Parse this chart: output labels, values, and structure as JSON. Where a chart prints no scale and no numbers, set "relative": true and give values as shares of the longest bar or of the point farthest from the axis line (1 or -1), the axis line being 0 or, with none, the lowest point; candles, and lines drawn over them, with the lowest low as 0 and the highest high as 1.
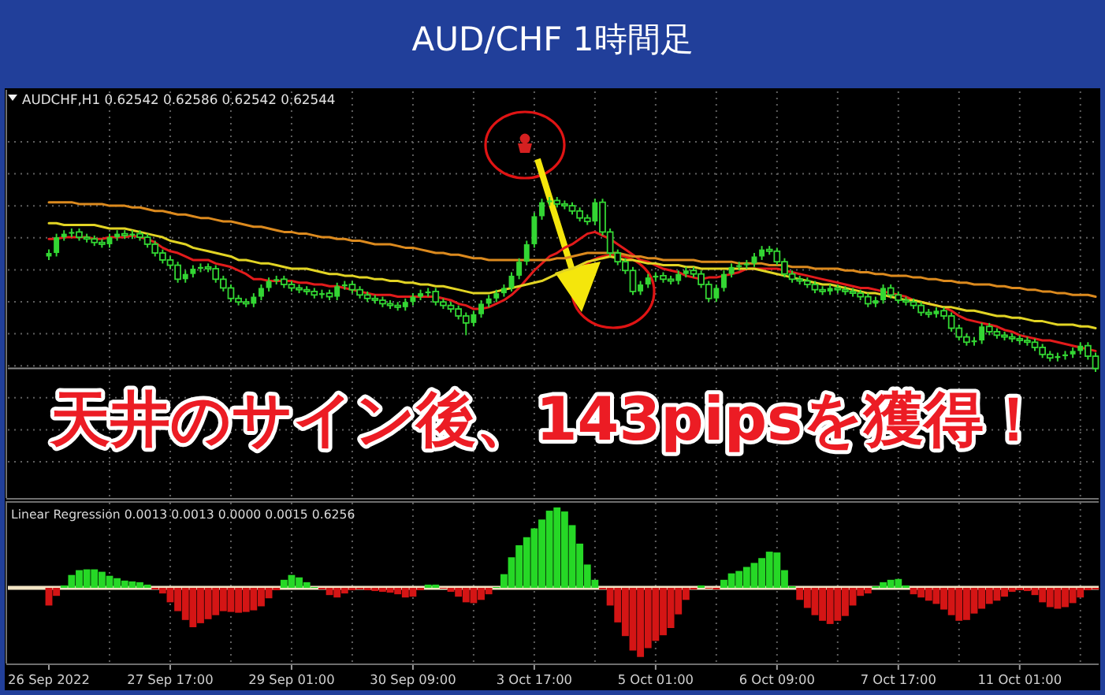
{
  "chart_data": [
    {
      "type": "candlestick",
      "title": "AUD/CHF 1時間足",
      "subtitle": "AUDCHF,H1 0.62542 0.62586 0.62542 0.62544",
      "annotations": [
        "天井のサイン後、143pipsを獲得！"
      ],
      "relative": true,
      "grid": true,
      "tick_labels": false,
      "categories": [
        null,
        null,
        null,
        null,
        null,
        null,
        null,
        null,
        null,
        null,
        null,
        null,
        null,
        null,
        null,
        null,
        null,
        null,
        null,
        null,
        null,
        null,
        null,
        null,
        null,
        null,
        null,
        null,
        null,
        null,
        null,
        null,
        null,
        null,
        null,
        null,
        null,
        null,
        null,
        null,
        null,
        null,
        null,
        null,
        null,
        null,
        null,
        null,
        null,
        null,
        null,
        null,
        null,
        null,
        null,
        null,
        null,
        null,
        null,
        null,
        null,
        null,
        null,
        null,
        null,
        null,
        null,
        null,
        null,
        null,
        null,
        null,
        null,
        null,
        null,
        null,
        null,
        null,
        null,
        null,
        null,
        null,
        null,
        null,
        null,
        null,
        null,
        null,
        null,
        null,
        null,
        null,
        null,
        null,
        null,
        null,
        null,
        null,
        null,
        null,
        null,
        null,
        null,
        null,
        null,
        null,
        null,
        null,
        null,
        null,
        null,
        null,
        null,
        null,
        null,
        null,
        null,
        null,
        null,
        null,
        null,
        null,
        null,
        null,
        null,
        null,
        null,
        null,
        null,
        null,
        null,
        null,
        null,
        null,
        null,
        null,
        null,
        null,
        null
      ],
      "color": "#33d633",
      "ohlc": [
        [
          0.66,
          0.7,
          0.64,
          0.68
        ],
        [
          0.68,
          0.79,
          0.66,
          0.77
        ],
        [
          0.77,
          0.81,
          0.75,
          0.79
        ],
        [
          0.79,
          0.82,
          0.77,
          0.8
        ],
        [
          0.8,
          0.82,
          0.75,
          0.77
        ],
        [
          0.77,
          0.79,
          0.74,
          0.76
        ],
        [
          0.76,
          0.78,
          0.72,
          0.74
        ],
        [
          0.74,
          0.76,
          0.71,
          0.73
        ],
        [
          0.73,
          0.79,
          0.71,
          0.77
        ],
        [
          0.77,
          0.81,
          0.75,
          0.79
        ],
        [
          0.79,
          0.81,
          0.76,
          0.78
        ],
        [
          0.78,
          0.81,
          0.76,
          0.79
        ],
        [
          0.79,
          0.81,
          0.75,
          0.77
        ],
        [
          0.77,
          0.79,
          0.71,
          0.73
        ],
        [
          0.73,
          0.75,
          0.66,
          0.68
        ],
        [
          0.68,
          0.7,
          0.62,
          0.64
        ],
        [
          0.64,
          0.66,
          0.59,
          0.61
        ],
        [
          0.61,
          0.63,
          0.51,
          0.53
        ],
        [
          0.53,
          0.58,
          0.51,
          0.56
        ],
        [
          0.56,
          0.61,
          0.54,
          0.59
        ],
        [
          0.59,
          0.62,
          0.57,
          0.6
        ],
        [
          0.6,
          0.62,
          0.57,
          0.59
        ],
        [
          0.59,
          0.61,
          0.51,
          0.53
        ],
        [
          0.53,
          0.55,
          0.46,
          0.48
        ],
        [
          0.48,
          0.5,
          0.4,
          0.42
        ],
        [
          0.42,
          0.44,
          0.38,
          0.4
        ],
        [
          0.4,
          0.42,
          0.37,
          0.39
        ],
        [
          0.39,
          0.45,
          0.37,
          0.43
        ],
        [
          0.43,
          0.5,
          0.41,
          0.48
        ],
        [
          0.48,
          0.54,
          0.46,
          0.52
        ],
        [
          0.52,
          0.55,
          0.5,
          0.53
        ],
        [
          0.53,
          0.55,
          0.48,
          0.5
        ],
        [
          0.5,
          0.52,
          0.46,
          0.48
        ],
        [
          0.48,
          0.5,
          0.45,
          0.47
        ],
        [
          0.47,
          0.49,
          0.44,
          0.46
        ],
        [
          0.46,
          0.48,
          0.42,
          0.44
        ],
        [
          0.44,
          0.47,
          0.42,
          0.45
        ],
        [
          0.45,
          0.47,
          0.41,
          0.43
        ],
        [
          0.43,
          0.51,
          0.41,
          0.49
        ],
        [
          0.49,
          0.52,
          0.47,
          0.5
        ],
        [
          0.5,
          0.52,
          0.45,
          0.47
        ],
        [
          0.47,
          0.49,
          0.42,
          0.44
        ],
        [
          0.44,
          0.46,
          0.4,
          0.42
        ],
        [
          0.42,
          0.44,
          0.39,
          0.41
        ],
        [
          0.41,
          0.43,
          0.37,
          0.39
        ],
        [
          0.39,
          0.41,
          0.36,
          0.38
        ],
        [
          0.38,
          0.4,
          0.35,
          0.37
        ],
        [
          0.37,
          0.42,
          0.35,
          0.4
        ],
        [
          0.4,
          0.45,
          0.38,
          0.43
        ],
        [
          0.43,
          0.47,
          0.41,
          0.45
        ],
        [
          0.45,
          0.48,
          0.43,
          0.46
        ],
        [
          0.46,
          0.48,
          0.38,
          0.4
        ],
        [
          0.4,
          0.42,
          0.36,
          0.38
        ],
        [
          0.38,
          0.4,
          0.34,
          0.36
        ],
        [
          0.36,
          0.38,
          0.3,
          0.32
        ],
        [
          0.32,
          0.34,
          0.21,
          0.28
        ],
        [
          0.28,
          0.35,
          0.26,
          0.33
        ],
        [
          0.33,
          0.41,
          0.31,
          0.39
        ],
        [
          0.39,
          0.44,
          0.37,
          0.42
        ],
        [
          0.42,
          0.47,
          0.4,
          0.45
        ],
        [
          0.45,
          0.5,
          0.43,
          0.48
        ],
        [
          0.48,
          0.57,
          0.46,
          0.55
        ],
        [
          0.55,
          0.65,
          0.53,
          0.63
        ],
        [
          0.63,
          0.75,
          0.61,
          0.73
        ],
        [
          0.73,
          0.91,
          0.71,
          0.89
        ],
        [
          0.89,
          0.99,
          0.87,
          0.97
        ],
        [
          0.97,
          1.0,
          0.95,
          0.98
        ],
        [
          0.98,
          1.0,
          0.94,
          0.96
        ],
        [
          0.96,
          0.98,
          0.93,
          0.95
        ],
        [
          0.95,
          0.97,
          0.9,
          0.92
        ],
        [
          0.92,
          0.94,
          0.86,
          0.88
        ],
        [
          0.88,
          0.9,
          0.84,
          0.86
        ],
        [
          0.86,
          0.99,
          0.84,
          0.97
        ],
        [
          0.97,
          0.99,
          0.78,
          0.8
        ],
        [
          0.8,
          0.82,
          0.66,
          0.68
        ],
        [
          0.68,
          0.7,
          0.61,
          0.63
        ],
        [
          0.63,
          0.65,
          0.56,
          0.58
        ],
        [
          0.58,
          0.6,
          0.44,
          0.46
        ],
        [
          0.46,
          0.52,
          0.44,
          0.5
        ],
        [
          0.5,
          0.56,
          0.48,
          0.54
        ],
        [
          0.54,
          0.57,
          0.52,
          0.55
        ],
        [
          0.55,
          0.57,
          0.51,
          0.53
        ],
        [
          0.53,
          0.55,
          0.5,
          0.52
        ],
        [
          0.52,
          0.58,
          0.5,
          0.56
        ],
        [
          0.56,
          0.6,
          0.54,
          0.58
        ],
        [
          0.58,
          0.6,
          0.54,
          0.56
        ],
        [
          0.56,
          0.58,
          0.48,
          0.5
        ],
        [
          0.5,
          0.52,
          0.4,
          0.42
        ],
        [
          0.42,
          0.5,
          0.4,
          0.48
        ],
        [
          0.48,
          0.58,
          0.46,
          0.56
        ],
        [
          0.56,
          0.62,
          0.54,
          0.6
        ],
        [
          0.6,
          0.63,
          0.58,
          0.61
        ],
        [
          0.61,
          0.64,
          0.59,
          0.62
        ],
        [
          0.62,
          0.68,
          0.6,
          0.66
        ],
        [
          0.66,
          0.72,
          0.64,
          0.7
        ],
        [
          0.7,
          0.72,
          0.67,
          0.69
        ],
        [
          0.69,
          0.71,
          0.61,
          0.63
        ],
        [
          0.63,
          0.65,
          0.54,
          0.56
        ],
        [
          0.56,
          0.58,
          0.51,
          0.53
        ],
        [
          0.53,
          0.55,
          0.5,
          0.52
        ],
        [
          0.52,
          0.54,
          0.48,
          0.5
        ],
        [
          0.5,
          0.52,
          0.45,
          0.47
        ],
        [
          0.47,
          0.49,
          0.44,
          0.46
        ],
        [
          0.46,
          0.5,
          0.44,
          0.48
        ],
        [
          0.48,
          0.5,
          0.45,
          0.47
        ],
        [
          0.47,
          0.49,
          0.44,
          0.46
        ],
        [
          0.46,
          0.48,
          0.43,
          0.45
        ],
        [
          0.45,
          0.47,
          0.41,
          0.43
        ],
        [
          0.43,
          0.45,
          0.37,
          0.39
        ],
        [
          0.39,
          0.43,
          0.37,
          0.41
        ],
        [
          0.41,
          0.5,
          0.39,
          0.48
        ],
        [
          0.48,
          0.5,
          0.42,
          0.44
        ],
        [
          0.44,
          0.46,
          0.39,
          0.41
        ],
        [
          0.41,
          0.43,
          0.38,
          0.4
        ],
        [
          0.4,
          0.42,
          0.36,
          0.38
        ],
        [
          0.38,
          0.4,
          0.32,
          0.34
        ],
        [
          0.34,
          0.36,
          0.31,
          0.33
        ],
        [
          0.33,
          0.37,
          0.31,
          0.35
        ],
        [
          0.35,
          0.37,
          0.3,
          0.32
        ],
        [
          0.32,
          0.34,
          0.23,
          0.25
        ],
        [
          0.25,
          0.27,
          0.18,
          0.2
        ],
        [
          0.2,
          0.22,
          0.15,
          0.17
        ],
        [
          0.17,
          0.2,
          0.15,
          0.18
        ],
        [
          0.18,
          0.28,
          0.16,
          0.26
        ],
        [
          0.26,
          0.28,
          0.21,
          0.23
        ],
        [
          0.23,
          0.25,
          0.19,
          0.21
        ],
        [
          0.21,
          0.23,
          0.18,
          0.2
        ],
        [
          0.2,
          0.22,
          0.17,
          0.19
        ],
        [
          0.19,
          0.21,
          0.16,
          0.18
        ],
        [
          0.18,
          0.2,
          0.15,
          0.17
        ],
        [
          0.17,
          0.19,
          0.12,
          0.14
        ],
        [
          0.14,
          0.16,
          0.08,
          0.1
        ],
        [
          0.1,
          0.12,
          0.06,
          0.08
        ],
        [
          0.08,
          0.11,
          0.06,
          0.09
        ],
        [
          0.09,
          0.12,
          0.07,
          0.1
        ],
        [
          0.1,
          0.14,
          0.08,
          0.12
        ],
        [
          0.12,
          0.17,
          0.1,
          0.15
        ],
        [
          0.15,
          0.17,
          0.07,
          0.09
        ],
        [
          0.09,
          0.11,
          0.0,
          0.02
        ]
      ],
      "series": [
        {
          "type": "line",
          "color": "#e21b1b",
          "values": [
            0.76,
            0.76,
            0.77,
            0.77,
            0.77,
            0.77,
            0.76,
            0.76,
            0.77,
            0.77,
            0.77,
            0.78,
            0.77,
            0.76,
            0.74,
            0.71,
            0.69,
            0.68,
            0.66,
            0.64,
            0.64,
            0.64,
            0.62,
            0.61,
            0.6,
            0.58,
            0.56,
            0.53,
            0.53,
            0.52,
            0.52,
            0.52,
            0.52,
            0.51,
            0.51,
            0.5,
            0.5,
            0.49,
            0.49,
            0.48,
            0.47,
            0.46,
            0.45,
            0.44,
            0.44,
            0.44,
            0.43,
            0.43,
            0.43,
            0.43,
            0.43,
            0.43,
            0.42,
            0.41,
            0.39,
            0.38,
            0.36,
            0.36,
            0.37,
            0.39,
            0.41,
            0.44,
            0.48,
            0.53,
            0.58,
            0.62,
            0.66,
            0.68,
            0.71,
            0.73,
            0.76,
            0.79,
            0.8,
            0.78,
            0.76,
            0.73,
            0.7,
            0.67,
            0.64,
            0.63,
            0.61,
            0.59,
            0.58,
            0.57,
            0.55,
            0.54,
            0.53,
            0.54,
            0.54,
            0.55,
            0.56,
            0.57,
            0.59,
            0.59,
            0.59,
            0.59,
            0.59,
            0.58,
            0.57,
            0.56,
            0.55,
            0.54,
            0.53,
            0.52,
            0.51,
            0.5,
            0.49,
            0.48,
            0.48,
            0.47,
            0.46,
            0.45,
            0.44,
            0.43,
            0.41,
            0.4,
            0.39,
            0.38,
            0.37,
            0.35,
            0.32,
            0.3,
            0.29,
            0.28,
            0.27,
            0.26,
            0.24,
            0.23,
            0.21,
            0.2,
            0.19,
            0.18,
            0.18,
            0.17,
            0.16,
            0.15,
            0.14,
            0.13,
            0.12
          ]
        },
        {
          "type": "line",
          "color": "#e2d424",
          "values": [
            0.85,
            0.85,
            0.84,
            0.84,
            0.84,
            0.84,
            0.84,
            0.83,
            0.82,
            0.82,
            0.82,
            0.81,
            0.8,
            0.79,
            0.78,
            0.77,
            0.75,
            0.74,
            0.73,
            0.71,
            0.7,
            0.69,
            0.68,
            0.67,
            0.66,
            0.64,
            0.64,
            0.63,
            0.62,
            0.62,
            0.61,
            0.6,
            0.59,
            0.59,
            0.59,
            0.58,
            0.57,
            0.56,
            0.56,
            0.55,
            0.55,
            0.54,
            0.54,
            0.53,
            0.53,
            0.52,
            0.52,
            0.51,
            0.51,
            0.5,
            0.5,
            0.49,
            0.49,
            0.48,
            0.47,
            0.46,
            0.45,
            0.45,
            0.45,
            0.46,
            0.47,
            0.48,
            0.49,
            0.5,
            0.51,
            0.52,
            0.54,
            0.56,
            0.58,
            0.59,
            0.61,
            0.63,
            0.64,
            0.65,
            0.66,
            0.65,
            0.64,
            0.64,
            0.63,
            0.62,
            0.62,
            0.61,
            0.61,
            0.61,
            0.6,
            0.6,
            0.59,
            0.59,
            0.59,
            0.59,
            0.59,
            0.59,
            0.59,
            0.59,
            0.58,
            0.57,
            0.56,
            0.55,
            0.54,
            0.53,
            0.52,
            0.51,
            0.5,
            0.5,
            0.49,
            0.48,
            0.47,
            0.46,
            0.45,
            0.45,
            0.44,
            0.43,
            0.42,
            0.41,
            0.41,
            0.4,
            0.39,
            0.38,
            0.37,
            0.37,
            0.36,
            0.35,
            0.35,
            0.34,
            0.33,
            0.32,
            0.32,
            0.31,
            0.31,
            0.3,
            0.29,
            0.29,
            0.28,
            0.27,
            0.27,
            0.27,
            0.26,
            0.26,
            0.25
          ]
        },
        {
          "type": "line",
          "color": "#dc8a1e",
          "values": [
            0.97,
            0.97,
            0.97,
            0.97,
            0.96,
            0.96,
            0.96,
            0.96,
            0.95,
            0.95,
            0.95,
            0.94,
            0.94,
            0.93,
            0.92,
            0.92,
            0.91,
            0.9,
            0.9,
            0.89,
            0.88,
            0.88,
            0.87,
            0.86,
            0.86,
            0.85,
            0.84,
            0.83,
            0.83,
            0.82,
            0.81,
            0.8,
            0.8,
            0.79,
            0.79,
            0.78,
            0.77,
            0.77,
            0.76,
            0.76,
            0.75,
            0.75,
            0.74,
            0.73,
            0.73,
            0.73,
            0.72,
            0.71,
            0.71,
            0.7,
            0.69,
            0.68,
            0.68,
            0.67,
            0.67,
            0.66,
            0.65,
            0.65,
            0.64,
            0.64,
            0.64,
            0.64,
            0.64,
            0.64,
            0.64,
            0.64,
            0.64,
            0.65,
            0.65,
            0.66,
            0.67,
            0.68,
            0.68,
            0.68,
            0.68,
            0.68,
            0.67,
            0.66,
            0.66,
            0.65,
            0.65,
            0.64,
            0.64,
            0.64,
            0.64,
            0.64,
            0.63,
            0.63,
            0.63,
            0.63,
            0.63,
            0.62,
            0.62,
            0.62,
            0.62,
            0.61,
            0.61,
            0.61,
            0.6,
            0.6,
            0.6,
            0.59,
            0.59,
            0.59,
            0.59,
            0.58,
            0.58,
            0.57,
            0.57,
            0.56,
            0.56,
            0.55,
            0.55,
            0.55,
            0.54,
            0.54,
            0.53,
            0.53,
            0.52,
            0.52,
            0.51,
            0.51,
            0.5,
            0.5,
            0.5,
            0.49,
            0.49,
            0.48,
            0.48,
            0.47,
            0.47,
            0.46,
            0.46,
            0.45,
            0.45,
            0.44,
            0.44,
            0.44,
            0.43
          ]
        }
      ],
      "ref_lines": [
        {
          "axis": "y",
          "value": 0.02,
          "color": "#8a8a8a"
        }
      ]
    },
    {
      "type": "bar",
      "title": "Linear Regression 0.0013 0.0013 0.0000 0.0015 0.6256",
      "relative": true,
      "grid": "x",
      "tick_labels": "x",
      "categories": [
        "26 Sep 2022",
        null,
        null,
        null,
        null,
        null,
        null,
        null,
        null,
        null,
        null,
        null,
        null,
        null,
        null,
        null,
        "27 Sep 17:00",
        null,
        null,
        null,
        null,
        null,
        null,
        null,
        null,
        null,
        null,
        null,
        null,
        null,
        null,
        null,
        "29 Sep 01:00",
        null,
        null,
        null,
        null,
        null,
        null,
        null,
        null,
        null,
        null,
        null,
        null,
        null,
        null,
        null,
        "30 Sep 09:00",
        null,
        null,
        null,
        null,
        null,
        null,
        null,
        null,
        null,
        null,
        null,
        null,
        null,
        null,
        null,
        "3 Oct 17:00",
        null,
        null,
        null,
        null,
        null,
        null,
        null,
        null,
        null,
        null,
        null,
        null,
        null,
        null,
        null,
        "5 Oct 01:00",
        null,
        null,
        null,
        null,
        null,
        null,
        null,
        null,
        null,
        null,
        null,
        null,
        null,
        null,
        null,
        "6 Oct 09:00",
        null,
        null,
        null,
        null,
        null,
        null,
        null,
        null,
        null,
        null,
        null,
        null,
        null,
        null,
        null,
        "7 Oct 17:00",
        null,
        null,
        null,
        null,
        null,
        null,
        null,
        null,
        null,
        null,
        null,
        null,
        null,
        null,
        null,
        "11 Oct 01:00",
        null,
        null,
        null,
        null,
        null,
        null,
        null,
        null,
        null,
        null
      ],
      "values": [
        -0.22,
        -0.1,
        0.03,
        0.16,
        0.22,
        0.23,
        0.23,
        0.2,
        0.15,
        0.12,
        0.09,
        0.08,
        0.07,
        0.04,
        -0.02,
        -0.07,
        -0.18,
        -0.29,
        -0.4,
        -0.49,
        -0.44,
        -0.39,
        -0.34,
        -0.29,
        -0.3,
        -0.31,
        -0.3,
        -0.28,
        -0.23,
        -0.13,
        -0.03,
        0.1,
        0.16,
        0.13,
        0.07,
        0.01,
        -0.02,
        -0.09,
        -0.12,
        -0.07,
        -0.03,
        -0.02,
        -0.03,
        -0.04,
        -0.05,
        -0.06,
        -0.08,
        -0.12,
        -0.11,
        -0.03,
        0.04,
        0.04,
        -0.01,
        -0.05,
        -0.11,
        -0.18,
        -0.19,
        -0.15,
        -0.08,
        0.01,
        0.17,
        0.38,
        0.53,
        0.63,
        0.74,
        0.85,
        0.96,
        1.0,
        0.95,
        0.78,
        0.55,
        0.29,
        0.1,
        -0.02,
        -0.22,
        -0.43,
        -0.6,
        -0.78,
        -0.86,
        -0.75,
        -0.66,
        -0.59,
        -0.5,
        -0.33,
        -0.15,
        -0.02,
        0.03,
        -0.01,
        -0.02,
        0.1,
        0.18,
        0.21,
        0.26,
        0.31,
        0.37,
        0.45,
        0.44,
        0.22,
        0.02,
        -0.15,
        -0.25,
        -0.34,
        -0.41,
        -0.45,
        -0.41,
        -0.35,
        -0.22,
        -0.1,
        -0.07,
        0.02,
        0.07,
        0.1,
        0.11,
        0.03,
        -0.08,
        -0.12,
        -0.16,
        -0.2,
        -0.27,
        -0.34,
        -0.41,
        -0.4,
        -0.32,
        -0.26,
        -0.2,
        -0.16,
        -0.11,
        -0.05,
        -0.03,
        -0.04,
        -0.09,
        -0.18,
        -0.24,
        -0.26,
        -0.24,
        -0.19,
        -0.12,
        -0.03,
        -0.02
      ],
      "colors": [
        "#d41515",
        "#d41515",
        "#26d826",
        "#26d826",
        "#26d826",
        "#26d826",
        "#26d826",
        "#26d826",
        "#26d826",
        "#26d826",
        "#26d826",
        "#26d826",
        "#26d826",
        "#26d826",
        "#d41515",
        "#d41515",
        "#d41515",
        "#d41515",
        "#d41515",
        "#d41515",
        "#d41515",
        "#d41515",
        "#d41515",
        "#d41515",
        "#d41515",
        "#d41515",
        "#d41515",
        "#d41515",
        "#d41515",
        "#d41515",
        "#d41515",
        "#26d826",
        "#26d826",
        "#26d826",
        "#26d826",
        "#26d826",
        "#d41515",
        "#d41515",
        "#d41515",
        "#d41515",
        "#d41515",
        "#d41515",
        "#d41515",
        "#d41515",
        "#d41515",
        "#d41515",
        "#d41515",
        "#d41515",
        "#d41515",
        "#d41515",
        "#26d826",
        "#26d826",
        "#d41515",
        "#d41515",
        "#d41515",
        "#d41515",
        "#d41515",
        "#d41515",
        "#d41515",
        "#26d826",
        "#26d826",
        "#26d826",
        "#26d826",
        "#26d826",
        "#26d826",
        "#26d826",
        "#26d826",
        "#26d826",
        "#26d826",
        "#26d826",
        "#26d826",
        "#26d826",
        "#26d826",
        "#d41515",
        "#d41515",
        "#d41515",
        "#d41515",
        "#d41515",
        "#d41515",
        "#d41515",
        "#d41515",
        "#d41515",
        "#d41515",
        "#d41515",
        "#d41515",
        "#d41515",
        "#26d826",
        "#d41515",
        "#d41515",
        "#26d826",
        "#26d826",
        "#26d826",
        "#26d826",
        "#26d826",
        "#26d826",
        "#26d826",
        "#26d826",
        "#26d826",
        "#26d826",
        "#d41515",
        "#d41515",
        "#d41515",
        "#d41515",
        "#d41515",
        "#d41515",
        "#d41515",
        "#d41515",
        "#d41515",
        "#d41515",
        "#26d826",
        "#26d826",
        "#26d826",
        "#26d826",
        "#26d826",
        "#d41515",
        "#d41515",
        "#d41515",
        "#d41515",
        "#d41515",
        "#d41515",
        "#d41515",
        "#d41515",
        "#d41515",
        "#d41515",
        "#d41515",
        "#d41515",
        "#d41515",
        "#d41515",
        "#d41515",
        "#d41515",
        "#d41515",
        "#d41515",
        "#d41515",
        "#d41515",
        "#d41515",
        "#d41515",
        "#d41515",
        "#d41515",
        "#d41515"
      ],
      "ref_lines": [
        {
          "axis": "y",
          "value": 0,
          "color": "#f2e4c4"
        }
      ]
    }
  ]
}
